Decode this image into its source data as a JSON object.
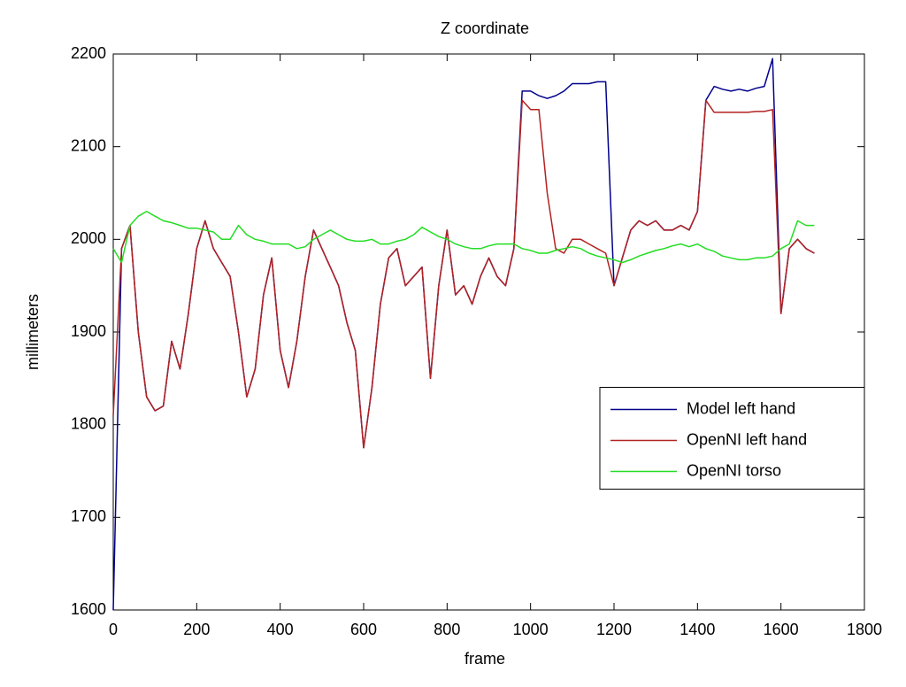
{
  "chart_data": {
    "type": "line",
    "title": "Z coordinate",
    "x_label": "frame",
    "y_label": "millimeters",
    "xlim": [
      0,
      1800
    ],
    "xticks": [
      0,
      200,
      400,
      600,
      800,
      1000,
      1200,
      1400,
      1600,
      1800
    ],
    "ylim": [
      1600,
      2200
    ],
    "yticks": [
      1600,
      1700,
      1800,
      1900,
      2000,
      2100,
      2200
    ],
    "legend": "east",
    "x": [
      0,
      20,
      40,
      60,
      80,
      100,
      120,
      140,
      160,
      180,
      200,
      220,
      240,
      260,
      280,
      300,
      320,
      340,
      360,
      380,
      400,
      420,
      440,
      460,
      480,
      500,
      520,
      540,
      560,
      580,
      600,
      620,
      640,
      660,
      680,
      700,
      720,
      740,
      760,
      780,
      800,
      820,
      840,
      860,
      880,
      900,
      920,
      940,
      960,
      980,
      1000,
      1020,
      1040,
      1060,
      1080,
      1100,
      1120,
      1140,
      1160,
      1180,
      1200,
      1220,
      1240,
      1260,
      1280,
      1300,
      1320,
      1340,
      1360,
      1380,
      1400,
      1420,
      1440,
      1460,
      1480,
      1500,
      1520,
      1540,
      1560,
      1580,
      1600,
      1620,
      1640,
      1660,
      1680
    ],
    "series": [
      {
        "name": "Model left hand",
        "color": "#00008b",
        "values": [
          1600,
          1990,
          2015,
          1900,
          1830,
          1815,
          1820,
          1890,
          1860,
          1920,
          1990,
          2020,
          1990,
          1975,
          1960,
          1900,
          1830,
          1860,
          1940,
          1980,
          1880,
          1840,
          1890,
          1960,
          2010,
          1990,
          1970,
          1950,
          1910,
          1880,
          1775,
          1840,
          1930,
          1980,
          1990,
          1950,
          1960,
          1970,
          1850,
          1950,
          2010,
          1940,
          1950,
          1930,
          1960,
          1980,
          1960,
          1950,
          1990,
          2160,
          2160,
          2155,
          2152,
          2155,
          2160,
          2168,
          2168,
          2168,
          2170,
          2170,
          1950,
          1980,
          2010,
          2020,
          2015,
          2020,
          2010,
          2010,
          2015,
          2010,
          2030,
          2150,
          2165,
          2162,
          2160,
          2162,
          2160,
          2163,
          2165,
          2195,
          1920,
          1990,
          2000,
          1990,
          1985
        ]
      },
      {
        "name": "OpenNI left hand",
        "color": "#b22222",
        "values": [
          1810,
          1990,
          2015,
          1900,
          1830,
          1815,
          1820,
          1890,
          1860,
          1920,
          1990,
          2020,
          1990,
          1975,
          1960,
          1900,
          1830,
          1860,
          1940,
          1980,
          1880,
          1840,
          1890,
          1960,
          2010,
          1990,
          1970,
          1950,
          1910,
          1880,
          1775,
          1840,
          1930,
          1980,
          1990,
          1950,
          1960,
          1970,
          1850,
          1950,
          2010,
          1940,
          1950,
          1930,
          1960,
          1980,
          1960,
          1950,
          1990,
          2150,
          2140,
          2140,
          2050,
          1990,
          1985,
          2000,
          2000,
          1995,
          1990,
          1985,
          1950,
          1980,
          2010,
          2020,
          2015,
          2020,
          2010,
          2010,
          2015,
          2010,
          2030,
          2150,
          2137,
          2137,
          2137,
          2137,
          2137,
          2138,
          2138,
          2140,
          1920,
          1990,
          2000,
          1990,
          1985
        ]
      },
      {
        "name": "OpenNI torso",
        "color": "#22dd22",
        "values": [
          1990,
          1975,
          2015,
          2025,
          2030,
          2025,
          2020,
          2018,
          2015,
          2012,
          2012,
          2010,
          2008,
          2000,
          2000,
          2015,
          2005,
          2000,
          1998,
          1995,
          1995,
          1995,
          1990,
          1992,
          2000,
          2005,
          2010,
          2005,
          2000,
          1998,
          1998,
          2000,
          1995,
          1995,
          1998,
          2000,
          2005,
          2013,
          2008,
          2003,
          2000,
          1995,
          1992,
          1990,
          1990,
          1993,
          1995,
          1995,
          1995,
          1990,
          1988,
          1985,
          1985,
          1988,
          1990,
          1992,
          1990,
          1985,
          1982,
          1980,
          1978,
          1975,
          1978,
          1982,
          1985,
          1988,
          1990,
          1993,
          1995,
          1992,
          1995,
          1990,
          1987,
          1982,
          1980,
          1978,
          1978,
          1980,
          1980,
          1982,
          1990,
          1995,
          2020,
          2015,
          2015
        ]
      }
    ]
  }
}
